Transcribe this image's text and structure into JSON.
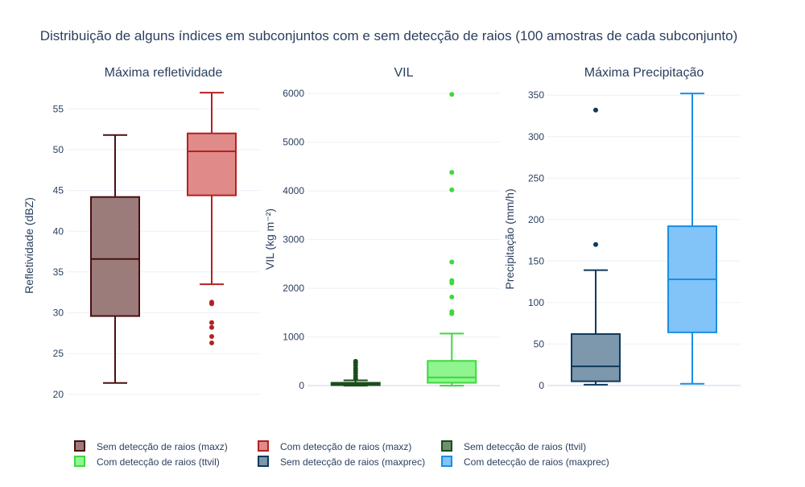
{
  "title": "Distribuição de alguns índices em subconjuntos com e sem detecção de raios (100 amostras de cada subconjunto)",
  "chart_data": [
    {
      "type": "box",
      "title": "Máxima refletividade",
      "ylabel": "Refletividade (dBZ)",
      "ylim": [
        19,
        57.5
      ],
      "yticks": [
        20,
        25,
        30,
        35,
        40,
        45,
        50,
        55
      ],
      "grid": true,
      "series": [
        {
          "name": "Sem detecção de raios (maxz)",
          "min": 21.4,
          "q1": 29.6,
          "median": 36.6,
          "q3": 44.2,
          "max": 51.8,
          "outliers": [],
          "line": "#4a0f0f",
          "fill": "#9c7b7b"
        },
        {
          "name": "Com detecção de raios (maxz)",
          "min": 33.5,
          "q1": 44.4,
          "median": 49.8,
          "q3": 52.0,
          "max": 57.0,
          "outliers": [
            31.3,
            31.1,
            28.8,
            28.2,
            27.1,
            26.3
          ],
          "line": "#b22222",
          "fill": "#e08a8a"
        }
      ]
    },
    {
      "type": "box",
      "title": "VIL",
      "ylabel": "VIL (kg m⁻²)",
      "ylim": [
        -80,
        6100
      ],
      "yticks": [
        0,
        1000,
        2000,
        3000,
        4000,
        5000,
        6000
      ],
      "grid": true,
      "series": [
        {
          "name": "Sem detecção de raios (ttvil)",
          "min": 0,
          "q1": 12,
          "median": 28,
          "q3": 60,
          "max": 110,
          "outliers": [
            150,
            200,
            260,
            310,
            360,
            420,
            470,
            500
          ],
          "line": "#1b4d1b",
          "fill": "#6f8f6f"
        },
        {
          "name": "Com detecção de raios (ttvil)",
          "min": 0,
          "q1": 60,
          "median": 170,
          "q3": 510,
          "max": 1070,
          "outliers": [
            5980,
            4380,
            4020,
            2540,
            2160,
            2110,
            1820,
            1520,
            1480
          ],
          "line": "#3ed83e",
          "fill": "#8ff58f"
        }
      ]
    },
    {
      "type": "box",
      "title": "Máxima Precipitação",
      "ylabel": "Precipitação (mm/h)",
      "ylim": [
        -5,
        358
      ],
      "yticks": [
        0,
        50,
        100,
        150,
        200,
        250,
        300,
        350
      ],
      "grid": true,
      "series": [
        {
          "name": "Sem detecção de raios (maxprec)",
          "min": 1,
          "q1": 5,
          "median": 23,
          "q3": 62,
          "max": 139,
          "outliers": [
            170,
            332
          ],
          "line": "#0d3a5c",
          "fill": "#7d97ad"
        },
        {
          "name": "Com detecção de raios (maxprec)",
          "min": 2,
          "q1": 64,
          "median": 128,
          "q3": 192,
          "max": 352,
          "outliers": [],
          "line": "#1a8fe3",
          "fill": "#82c3f8"
        }
      ]
    }
  ],
  "legend": [
    {
      "label": "Sem detecção de raios (maxz)",
      "line": "#4a0f0f",
      "fill": "#9c7b7b"
    },
    {
      "label": "Com detecção de raios (maxz)",
      "line": "#b22222",
      "fill": "#e08a8a"
    },
    {
      "label": "Sem detecção de raios (ttvil)",
      "line": "#1b4d1b",
      "fill": "#6f8f6f"
    },
    {
      "label": "Com detecção de raios (ttvil)",
      "line": "#3ed83e",
      "fill": "#8ff58f"
    },
    {
      "label": "Sem detecção de raios (maxprec)",
      "line": "#0d3a5c",
      "fill": "#7d97ad"
    },
    {
      "label": "Com detecção de raios (maxprec)",
      "line": "#1a8fe3",
      "fill": "#82c3f8"
    }
  ]
}
